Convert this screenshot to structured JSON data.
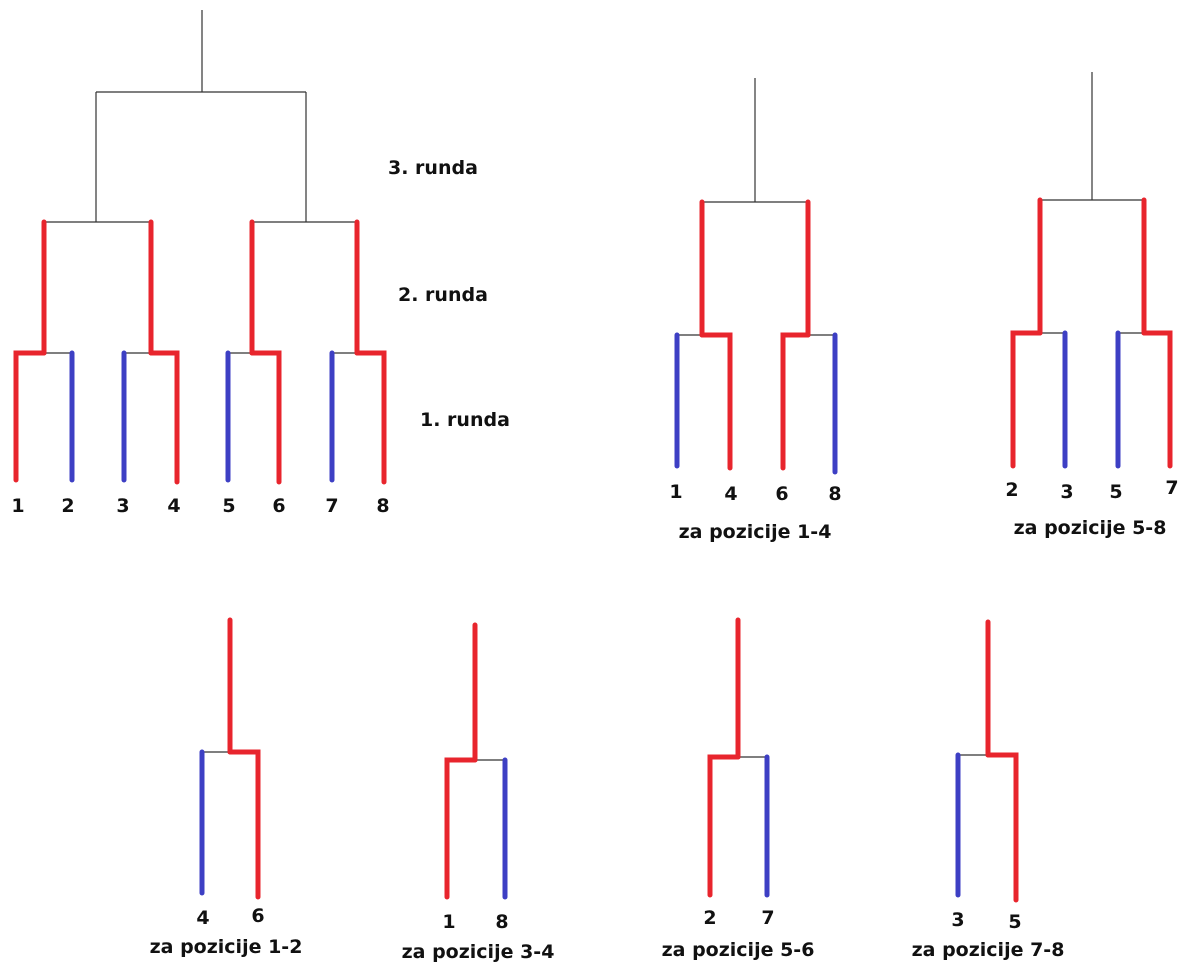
{
  "colors": {
    "winner": "#e8252d",
    "loser": "#3d3fc4",
    "neutral": "#333333"
  },
  "round_labels": [
    "3. runda",
    "2. runda",
    "1. runda"
  ],
  "main_bracket": {
    "seeds": [
      "1",
      "2",
      "3",
      "4",
      "5",
      "6",
      "7",
      "8"
    ]
  },
  "sub_brackets": [
    {
      "title": "za pozicije 1-4",
      "players": [
        "1",
        "4",
        "6",
        "8"
      ]
    },
    {
      "title": "za pozicije 5-8",
      "players": [
        "2",
        "3",
        "5",
        "7"
      ]
    },
    {
      "title": "za pozicije 1-2",
      "players": [
        "4",
        "6"
      ]
    },
    {
      "title": "za pozicije 3-4",
      "players": [
        "1",
        "8"
      ]
    },
    {
      "title": "za pozicije 5-6",
      "players": [
        "2",
        "7"
      ]
    },
    {
      "title": "za pozicije 7-8",
      "players": [
        "3",
        "5"
      ]
    }
  ]
}
